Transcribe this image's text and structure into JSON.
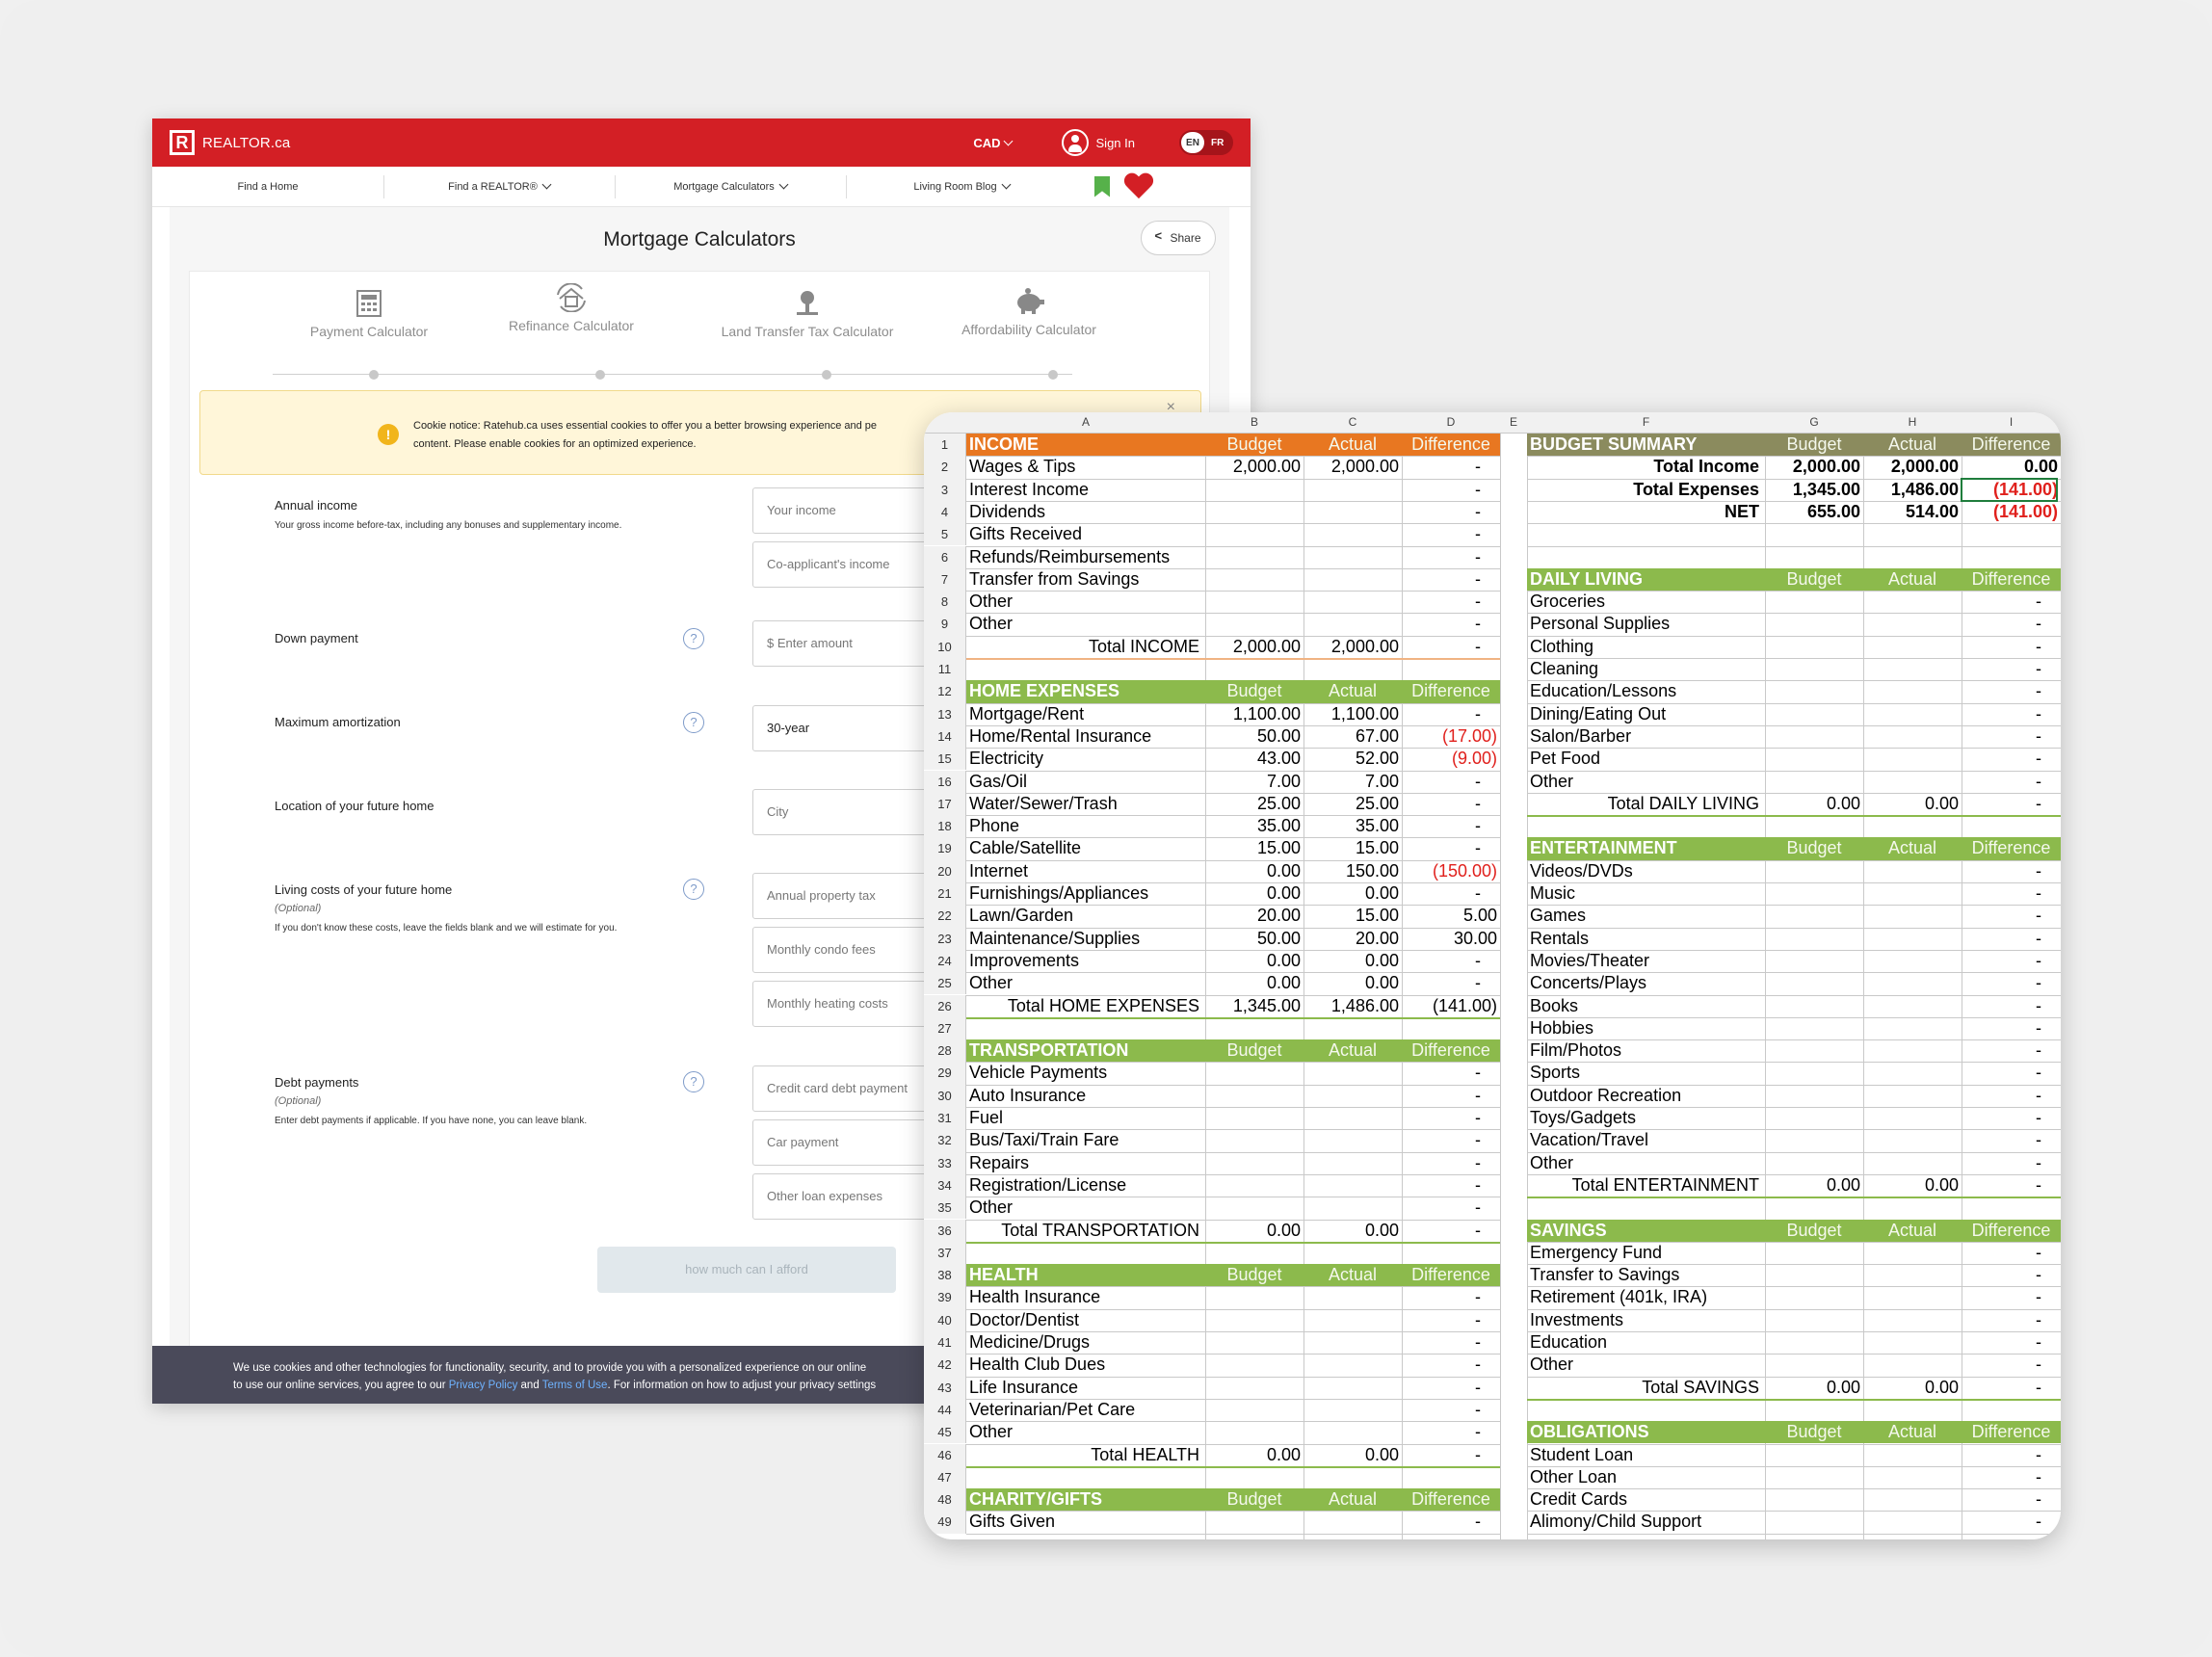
{
  "realtor": {
    "brand": "REALTOR.ca",
    "logo_letter": "R",
    "currency": "CAD",
    "sign_in": "Sign In",
    "lang_en": "EN",
    "lang_fr": "FR",
    "nav": [
      "Find a Home",
      "Find a REALTOR®",
      "Mortgage Calculators",
      "Living Room Blog"
    ],
    "title": "Mortgage Calculators",
    "share": "Share",
    "tabs": [
      "Payment Calculator",
      "Refinance Calculator",
      "Land Transfer Tax Calculator",
      "Affordability Calculator"
    ],
    "cookie_notice_line1": "Cookie notice: Ratehub.ca uses essential cookies to offer you a better browsing experience and pe",
    "cookie_notice_line2": "content. Please enable cookies for an optimized experience.",
    "cookie_close": "×",
    "annual_income": {
      "label": "Annual income",
      "sub": "Your gross income before-tax, including any bonuses and supplementary income.",
      "placeholder1": "Your income",
      "placeholder2": "Co-applicant's income"
    },
    "down_payment": {
      "label": "Down payment",
      "placeholder": "$ Enter amount"
    },
    "amortization": {
      "label": "Maximum amortization",
      "value": "30-year"
    },
    "location": {
      "label": "Location of your future home",
      "placeholder": "City"
    },
    "living_costs": {
      "label": "Living costs of your future home",
      "optional": "(Optional)",
      "sub": "If you don't know these costs, leave the fields blank and we will estimate for you.",
      "placeholders": [
        "Annual property tax",
        "Monthly condo fees",
        "Monthly heating costs"
      ]
    },
    "debt": {
      "label": "Debt payments",
      "optional": "(Optional)",
      "sub": "Enter debt payments if applicable. If you have none, you can leave blank.",
      "placeholders": [
        "Credit card debt payment",
        "Car payment",
        "Other loan expenses"
      ]
    },
    "help": "?",
    "submit": "how much can I afford",
    "cookie_bar_line1": "We use cookies and other technologies for functionality, security, and to provide you with a personalized experience on our online",
    "cookie_bar_line2a": "to use our online services, you agree to our ",
    "privacy": "Privacy Policy",
    "and": " and ",
    "terms": "Terms of Use",
    "cookie_bar_line2b": ". For information on how to adjust your privacy settings"
  },
  "sheet": {
    "columns": [
      "A",
      "B",
      "C",
      "D",
      "E",
      "F",
      "G",
      "H",
      "I"
    ],
    "left_rows": [
      [
        "INCOME",
        "Budget",
        "Actual",
        "Difference",
        "hdr-orange"
      ],
      [
        "Wages & Tips",
        "2,000.00",
        "2,000.00",
        "-",
        ""
      ],
      [
        "Interest Income",
        "",
        "",
        "-",
        ""
      ],
      [
        "Dividends",
        "",
        "",
        "-",
        ""
      ],
      [
        "Gifts Received",
        "",
        "",
        "-",
        ""
      ],
      [
        "Refunds/Reimbursements",
        "",
        "",
        "-",
        ""
      ],
      [
        "Transfer from Savings",
        "",
        "",
        "-",
        ""
      ],
      [
        "Other",
        "",
        "",
        "-",
        ""
      ],
      [
        "Other",
        "",
        "",
        "-",
        ""
      ],
      [
        "Total INCOME",
        "2,000.00",
        "2,000.00",
        "-",
        "total"
      ],
      [
        "",
        "",
        "",
        "",
        ""
      ],
      [
        "HOME EXPENSES",
        "Budget",
        "Actual",
        "Difference",
        "hdr-green"
      ],
      [
        "Mortgage/Rent",
        "1,100.00",
        "1,100.00",
        "-",
        ""
      ],
      [
        "Home/Rental Insurance",
        "50.00",
        "67.00",
        "(17.00)",
        "neg"
      ],
      [
        "Electricity",
        "43.00",
        "52.00",
        "(9.00)",
        "neg"
      ],
      [
        "Gas/Oil",
        "7.00",
        "7.00",
        "-",
        ""
      ],
      [
        "Water/Sewer/Trash",
        "25.00",
        "25.00",
        "-",
        ""
      ],
      [
        "Phone",
        "35.00",
        "35.00",
        "-",
        ""
      ],
      [
        "Cable/Satellite",
        "15.00",
        "15.00",
        "-",
        ""
      ],
      [
        "Internet",
        "0.00",
        "150.00",
        "(150.00)",
        "neg"
      ],
      [
        "Furnishings/Appliances",
        "0.00",
        "0.00",
        "-",
        ""
      ],
      [
        "Lawn/Garden",
        "20.00",
        "15.00",
        "5.00",
        ""
      ],
      [
        "Maintenance/Supplies",
        "50.00",
        "20.00",
        "30.00",
        ""
      ],
      [
        "Improvements",
        "0.00",
        "0.00",
        "-",
        ""
      ],
      [
        "Other",
        "0.00",
        "0.00",
        "-",
        ""
      ],
      [
        "Total HOME EXPENSES",
        "1,345.00",
        "1,486.00",
        "(141.00)",
        "total"
      ],
      [
        "",
        "",
        "",
        "",
        ""
      ],
      [
        "TRANSPORTATION",
        "Budget",
        "Actual",
        "Difference",
        "hdr-green"
      ],
      [
        "Vehicle Payments",
        "",
        "",
        "-",
        ""
      ],
      [
        "Auto Insurance",
        "",
        "",
        "-",
        ""
      ],
      [
        "Fuel",
        "",
        "",
        "-",
        ""
      ],
      [
        "Bus/Taxi/Train Fare",
        "",
        "",
        "-",
        ""
      ],
      [
        "Repairs",
        "",
        "",
        "-",
        ""
      ],
      [
        "Registration/License",
        "",
        "",
        "-",
        ""
      ],
      [
        "Other",
        "",
        "",
        "-",
        ""
      ],
      [
        "Total TRANSPORTATION",
        "0.00",
        "0.00",
        "-",
        "total"
      ],
      [
        "",
        "",
        "",
        "",
        ""
      ],
      [
        "HEALTH",
        "Budget",
        "Actual",
        "Difference",
        "hdr-green"
      ],
      [
        "Health Insurance",
        "",
        "",
        "-",
        ""
      ],
      [
        "Doctor/Dentist",
        "",
        "",
        "-",
        ""
      ],
      [
        "Medicine/Drugs",
        "",
        "",
        "-",
        ""
      ],
      [
        "Health Club Dues",
        "",
        "",
        "-",
        ""
      ],
      [
        "Life Insurance",
        "",
        "",
        "-",
        ""
      ],
      [
        "Veterinarian/Pet Care",
        "",
        "",
        "-",
        ""
      ],
      [
        "Other",
        "",
        "",
        "-",
        ""
      ],
      [
        "Total HEALTH",
        "0.00",
        "0.00",
        "-",
        "total"
      ],
      [
        "",
        "",
        "",
        "",
        ""
      ],
      [
        "CHARITY/GIFTS",
        "Budget",
        "Actual",
        "Difference",
        "hdr-green"
      ],
      [
        "Gifts Given",
        "",
        "",
        "-",
        ""
      ]
    ],
    "right_rows": [
      [
        "BUDGET SUMMARY",
        "Budget",
        "Actual",
        "Difference",
        "hdr-olive"
      ],
      [
        "Total Income",
        "2,000.00",
        "2,000.00",
        "0.00",
        "sumbold"
      ],
      [
        "Total Expenses",
        "1,345.00",
        "1,486.00",
        "(141.00)",
        "sumneg"
      ],
      [
        "NET",
        "655.00",
        "514.00",
        "(141.00)",
        "sumneg"
      ],
      [
        "",
        "",
        "",
        "",
        ""
      ],
      [
        "",
        "",
        "",
        "",
        ""
      ],
      [
        "DAILY LIVING",
        "Budget",
        "Actual",
        "Difference",
        "hdr-green"
      ],
      [
        "Groceries",
        "",
        "",
        "-",
        ""
      ],
      [
        "Personal Supplies",
        "",
        "",
        "-",
        ""
      ],
      [
        "Clothing",
        "",
        "",
        "-",
        ""
      ],
      [
        "Cleaning",
        "",
        "",
        "-",
        ""
      ],
      [
        "Education/Lessons",
        "",
        "",
        "-",
        ""
      ],
      [
        "Dining/Eating Out",
        "",
        "",
        "-",
        ""
      ],
      [
        "Salon/Barber",
        "",
        "",
        "-",
        ""
      ],
      [
        "Pet Food",
        "",
        "",
        "-",
        ""
      ],
      [
        "Other",
        "",
        "",
        "-",
        ""
      ],
      [
        "Total DAILY LIVING",
        "0.00",
        "0.00",
        "-",
        "total"
      ],
      [
        "",
        "",
        "",
        "",
        ""
      ],
      [
        "ENTERTAINMENT",
        "Budget",
        "Actual",
        "Difference",
        "hdr-green"
      ],
      [
        "Videos/DVDs",
        "",
        "",
        "-",
        ""
      ],
      [
        "Music",
        "",
        "",
        "-",
        ""
      ],
      [
        "Games",
        "",
        "",
        "-",
        ""
      ],
      [
        "Rentals",
        "",
        "",
        "-",
        ""
      ],
      [
        "Movies/Theater",
        "",
        "",
        "-",
        ""
      ],
      [
        "Concerts/Plays",
        "",
        "",
        "-",
        ""
      ],
      [
        "Books",
        "",
        "",
        "-",
        ""
      ],
      [
        "Hobbies",
        "",
        "",
        "-",
        ""
      ],
      [
        "Film/Photos",
        "",
        "",
        "-",
        ""
      ],
      [
        "Sports",
        "",
        "",
        "-",
        ""
      ],
      [
        "Outdoor Recreation",
        "",
        "",
        "-",
        ""
      ],
      [
        "Toys/Gadgets",
        "",
        "",
        "-",
        ""
      ],
      [
        "Vacation/Travel",
        "",
        "",
        "-",
        ""
      ],
      [
        "Other",
        "",
        "",
        "-",
        ""
      ],
      [
        "Total ENTERTAINMENT",
        "0.00",
        "0.00",
        "-",
        "total"
      ],
      [
        "",
        "",
        "",
        "",
        ""
      ],
      [
        "SAVINGS",
        "Budget",
        "Actual",
        "Difference",
        "hdr-green"
      ],
      [
        "Emergency Fund",
        "",
        "",
        "-",
        ""
      ],
      [
        "Transfer to Savings",
        "",
        "",
        "-",
        ""
      ],
      [
        "Retirement (401k, IRA)",
        "",
        "",
        "-",
        ""
      ],
      [
        "Investments",
        "",
        "",
        "-",
        ""
      ],
      [
        "Education",
        "",
        "",
        "-",
        ""
      ],
      [
        "Other",
        "",
        "",
        "-",
        ""
      ],
      [
        "Total SAVINGS",
        "0.00",
        "0.00",
        "-",
        "total"
      ],
      [
        "",
        "",
        "",
        "",
        ""
      ],
      [
        "OBLIGATIONS",
        "Budget",
        "Actual",
        "Difference",
        "hdr-green"
      ],
      [
        "Student Loan",
        "",
        "",
        "-",
        ""
      ],
      [
        "Other Loan",
        "",
        "",
        "-",
        ""
      ],
      [
        "Credit Cards",
        "",
        "",
        "-",
        ""
      ],
      [
        "Alimony/Child Support",
        "",
        "",
        "-",
        ""
      ]
    ],
    "colors": {
      "orange": "#e87721",
      "green": "#8cba4c",
      "olive": "#8b8b5e",
      "negative": "#e0201c",
      "selection": "#1f7d3c"
    }
  }
}
